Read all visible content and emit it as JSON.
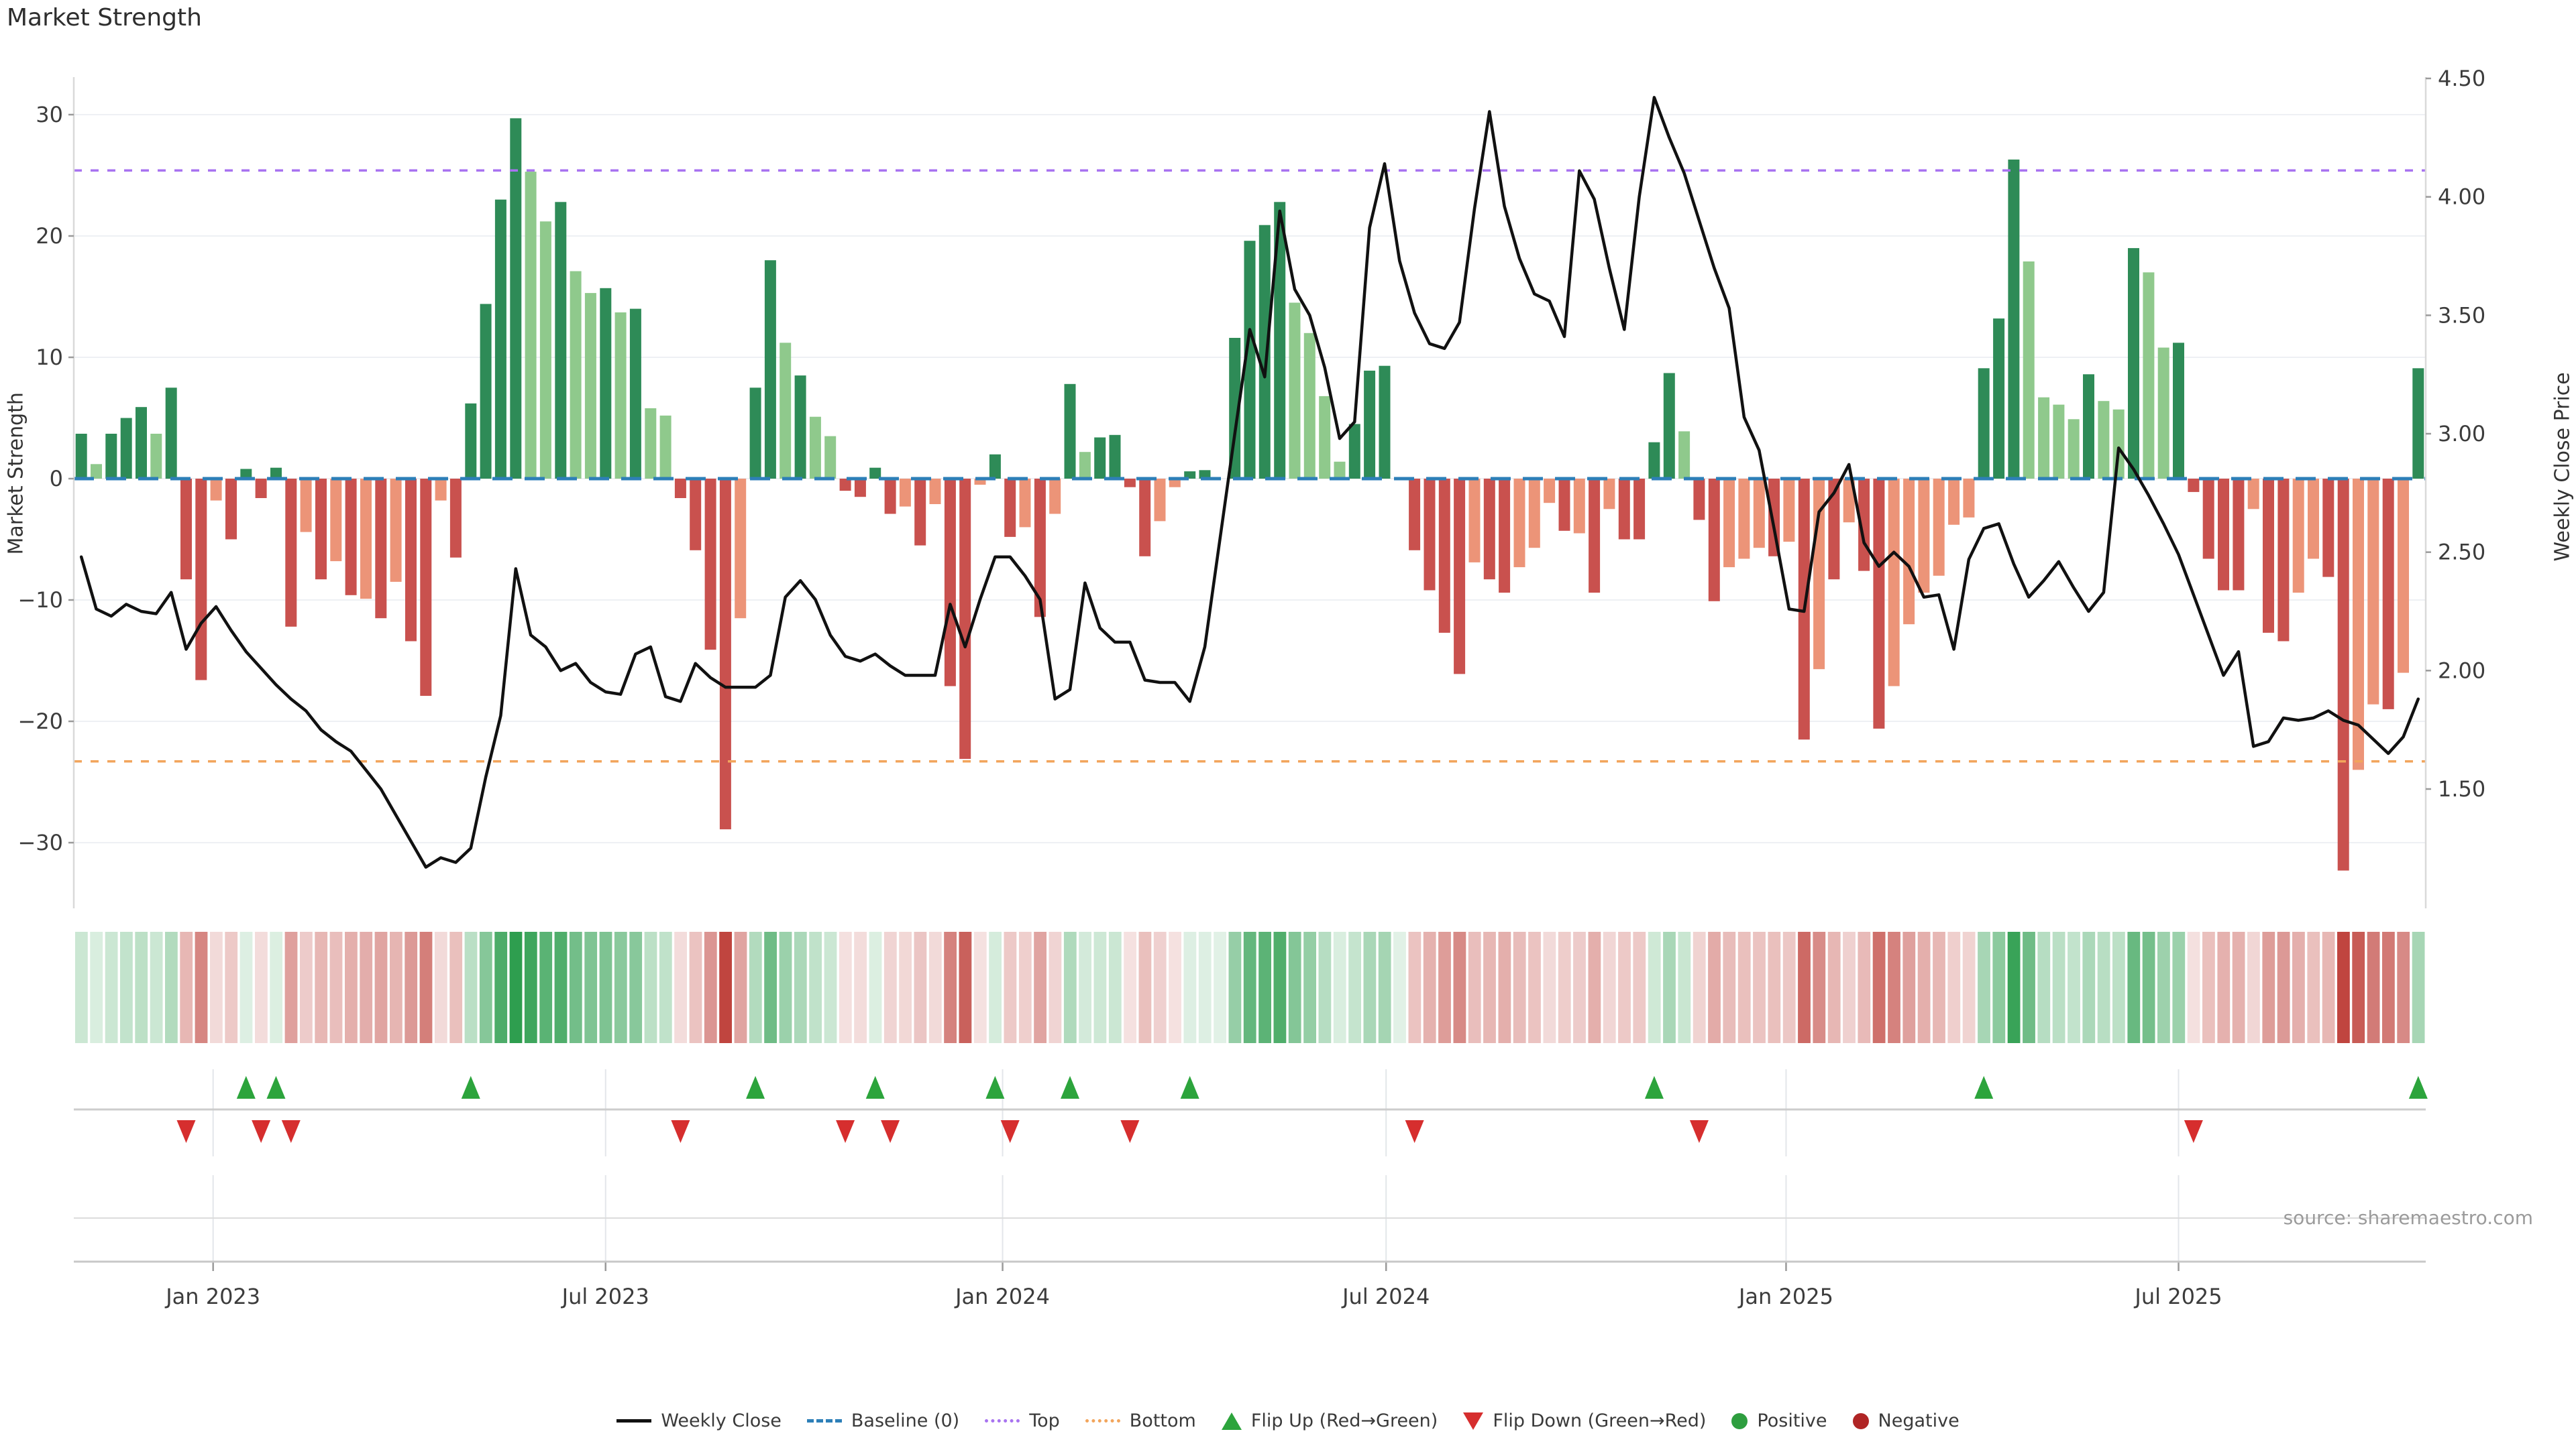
{
  "title": "Market Strength",
  "source": "source: sharemaestro.com",
  "axes": {
    "left_label": "Market Strength",
    "right_label": "Weekly Close Price",
    "left_ticks": [
      30,
      20,
      10,
      0,
      -10,
      -20,
      -30
    ],
    "right_ticks": [
      "4.50",
      "4.00",
      "3.50",
      "3.00",
      "2.50",
      "2.00",
      "1.50"
    ],
    "x_ticks": [
      {
        "label": "Jan 2023",
        "week": 8.8
      },
      {
        "label": "Jul 2023",
        "week": 35.0
      },
      {
        "label": "Jan 2024",
        "week": 61.5
      },
      {
        "label": "Jul 2024",
        "week": 87.1
      },
      {
        "label": "Jan 2025",
        "week": 113.8
      },
      {
        "label": "Jul 2025",
        "week": 140.0
      }
    ]
  },
  "chart_data": {
    "type": "bar",
    "title": "Market Strength",
    "ylabel_left": "Market Strength",
    "ylabel_right": "Weekly Close Price",
    "left_axis_range": [
      -33,
      31
    ],
    "right_axis_range": [
      1.1,
      4.6
    ],
    "baseline": 0,
    "top_level": 25.4,
    "bottom_level": -23.3,
    "grid": true,
    "legend_position": "bottom",
    "series": [
      {
        "name": "Market Strength (weekly bars)",
        "type": "bar",
        "axis": "left",
        "values": [
          3.7,
          1.2,
          3.7,
          5,
          5.9,
          3.7,
          7.5,
          -8.3,
          -16.6,
          -1.8,
          -5,
          0.8,
          -1.6,
          0.9,
          -12.2,
          -4.4,
          -8.3,
          -6.8,
          -9.6,
          -9.9,
          -11.5,
          -8.5,
          -13.4,
          -17.9,
          -1.8,
          -6.5,
          6.2,
          14.4,
          23,
          29.7,
          25.3,
          21.2,
          22.8,
          17.1,
          15.3,
          15.7,
          13.7,
          14,
          5.8,
          5.2,
          -1.6,
          -5.9,
          -14.1,
          -28.9,
          -11.5,
          7.5,
          18,
          11.2,
          8.5,
          5.1,
          3.5,
          -1,
          -1.5,
          0.9,
          -2.9,
          -2.3,
          -5.5,
          -2.1,
          -17.1,
          -23.1,
          -0.5,
          2,
          -4.8,
          -4,
          -11.4,
          -2.9,
          7.8,
          2.2,
          3.4,
          3.6,
          -0.7,
          -6.4,
          -3.5,
          -0.7,
          0.6,
          0.7,
          0,
          11.6,
          19.6,
          20.9,
          22.8,
          14.5,
          12,
          6.8,
          1.4,
          4.5,
          8.9,
          9.3,
          0,
          -5.9,
          -9.2,
          -12.7,
          -16.1,
          -6.9,
          -8.3,
          -9.4,
          -7.3,
          -5.7,
          -2,
          -4.3,
          -4.5,
          -9.4,
          -2.5,
          -5,
          -5,
          3,
          8.7,
          3.9,
          -3.4,
          -10.1,
          -7.3,
          -6.6,
          -5.7,
          -6.4,
          -5.2,
          -21.5,
          -15.7,
          -8.3,
          -3.6,
          -7.6,
          -20.6,
          -17.1,
          -12,
          -9.4,
          -8,
          -3.8,
          -3.2,
          9.1,
          13.2,
          26.3,
          17.9,
          6.7,
          6.1,
          4.9,
          8.6,
          6.4,
          5.7,
          19,
          17,
          10.8,
          11.2,
          -1.1,
          -6.6,
          -9.2,
          -9.2,
          -2.5,
          -12.7,
          -13.4,
          -9.4,
          -6.6,
          -8.1,
          -32.3,
          -24,
          -18.6,
          -19,
          -16,
          9.1
        ],
        "shades": [
          "dg",
          "lg",
          "dg",
          "dg",
          "dg",
          "lg",
          "dg",
          "dr",
          "dr",
          "lr",
          "dr",
          "dg",
          "dr",
          "dg",
          "dr",
          "lr",
          "dr",
          "lr",
          "dr",
          "lr",
          "dr",
          "lr",
          "dr",
          "dr",
          "lr",
          "dr",
          "dg",
          "dg",
          "dg",
          "dg",
          "lg",
          "lg",
          "dg",
          "lg",
          "lg",
          "dg",
          "lg",
          "dg",
          "lg",
          "lg",
          "dr",
          "dr",
          "dr",
          "dr",
          "lr",
          "dg",
          "dg",
          "lg",
          "dg",
          "lg",
          "lg",
          "dr",
          "dr",
          "dg",
          "dr",
          "lr",
          "dr",
          "lr",
          "dr",
          "dr",
          "lr",
          "dg",
          "dr",
          "lr",
          "dr",
          "lr",
          "dg",
          "lg",
          "dg",
          "dg",
          "dr",
          "dr",
          "lr",
          "lr",
          "dg",
          "dg",
          "dg",
          "dg",
          "dg",
          "dg",
          "dg",
          "lg",
          "lg",
          "lg",
          "lg",
          "dg",
          "dg",
          "dg",
          "dg",
          "dr",
          "dr",
          "dr",
          "dr",
          "lr",
          "dr",
          "dr",
          "lr",
          "lr",
          "lr",
          "dr",
          "lr",
          "dr",
          "lr",
          "dr",
          "dr",
          "dg",
          "dg",
          "lg",
          "dr",
          "dr",
          "lr",
          "lr",
          "lr",
          "dr",
          "lr",
          "dr",
          "lr",
          "dr",
          "lr",
          "dr",
          "dr",
          "lr",
          "lr",
          "lr",
          "lr",
          "lr",
          "lr",
          "dg",
          "dg",
          "dg",
          "lg",
          "lg",
          "lg",
          "lg",
          "dg",
          "lg",
          "lg",
          "dg",
          "lg",
          "lg",
          "dg",
          "dr",
          "dr",
          "dr",
          "dr",
          "lr",
          "dr",
          "dr",
          "lr",
          "lr",
          "dr",
          "dr",
          "lr",
          "lr",
          "dr",
          "lr",
          "dg"
        ]
      },
      {
        "name": "Weekly Close",
        "type": "line",
        "axis": "right",
        "values": [
          2.48,
          2.26,
          2.23,
          2.28,
          2.25,
          2.24,
          2.33,
          2.09,
          2.2,
          2.27,
          2.17,
          2.08,
          2.01,
          1.94,
          1.88,
          1.83,
          1.75,
          1.7,
          1.66,
          1.58,
          1.5,
          1.39,
          1.28,
          1.17,
          1.21,
          1.19,
          1.25,
          1.55,
          1.81,
          2.43,
          2.15,
          2.1,
          2,
          2.03,
          1.95,
          1.91,
          1.9,
          2.07,
          2.1,
          1.89,
          1.87,
          2.03,
          1.97,
          1.93,
          1.93,
          1.93,
          1.98,
          2.31,
          2.38,
          2.3,
          2.15,
          2.06,
          2.04,
          2.07,
          2.02,
          1.98,
          1.98,
          1.98,
          2.28,
          2.1,
          2.3,
          2.48,
          2.48,
          2.4,
          2.3,
          1.88,
          1.92,
          2.37,
          2.18,
          2.12,
          2.12,
          1.96,
          1.95,
          1.95,
          1.87,
          2.1,
          2.55,
          3,
          3.44,
          3.24,
          3.94,
          3.61,
          3.5,
          3.28,
          2.98,
          3.05,
          3.87,
          4.14,
          3.73,
          3.51,
          3.38,
          3.36,
          3.47,
          3.95,
          4.36,
          3.96,
          3.74,
          3.59,
          3.56,
          3.41,
          4.11,
          3.99,
          3.7,
          3.44,
          4,
          4.42,
          4.25,
          4.1,
          3.9,
          3.7,
          3.53,
          3.07,
          2.93,
          2.6,
          2.26,
          2.25,
          2.67,
          2.75,
          2.87,
          2.54,
          2.44,
          2.5,
          2.44,
          2.31,
          2.32,
          2.09,
          2.47,
          2.6,
          2.62,
          2.45,
          2.31,
          2.38,
          2.46,
          2.35,
          2.25,
          2.33,
          2.94,
          2.85,
          2.74,
          2.62,
          2.49,
          2.32,
          2.15,
          1.98,
          2.08,
          1.68,
          1.7,
          1.8,
          1.79,
          1.8,
          1.83,
          1.79,
          1.77,
          1.71,
          1.65,
          1.72,
          1.88
        ]
      }
    ],
    "flip_up_weeks": [
      11,
      13,
      26,
      45,
      53,
      61,
      66,
      74,
      105,
      127,
      156
    ],
    "flip_down_weeks": [
      7,
      12,
      14,
      40,
      51,
      54,
      62,
      70,
      89,
      108,
      141
    ]
  },
  "colors": {
    "bar_dark_green": "#2e8b57",
    "bar_light_green": "#8fc98c",
    "bar_dark_red": "#c9514e",
    "bar_light_red": "#ec9478",
    "line": "#111111",
    "baseline": "#2d7fb8",
    "top": "#a873f0",
    "bottom": "#f2a55c",
    "flip_up": "#2ca43c",
    "flip_down": "#d62e2e",
    "positive_dot": "#2e9e3f",
    "negative_dot": "#b02525",
    "grid": "#eef0f4",
    "spine": "#d9d9d9"
  },
  "legend": [
    {
      "type": "line",
      "color": "#111111",
      "label": "Weekly Close"
    },
    {
      "type": "dash",
      "color": "#2d7fb8",
      "label": "Baseline (0)"
    },
    {
      "type": "dots",
      "color": "#a873f0",
      "label": "Top"
    },
    {
      "type": "dots",
      "color": "#f2a55c",
      "label": "Bottom"
    },
    {
      "type": "tri-up",
      "color": "#2ca43c",
      "label": "Flip Up (Red→Green)"
    },
    {
      "type": "tri-down",
      "color": "#d62e2e",
      "label": "Flip Down (Green→Red)"
    },
    {
      "type": "dot",
      "color": "#2e9e3f",
      "label": "Positive"
    },
    {
      "type": "dot",
      "color": "#b02525",
      "label": "Negative"
    }
  ]
}
